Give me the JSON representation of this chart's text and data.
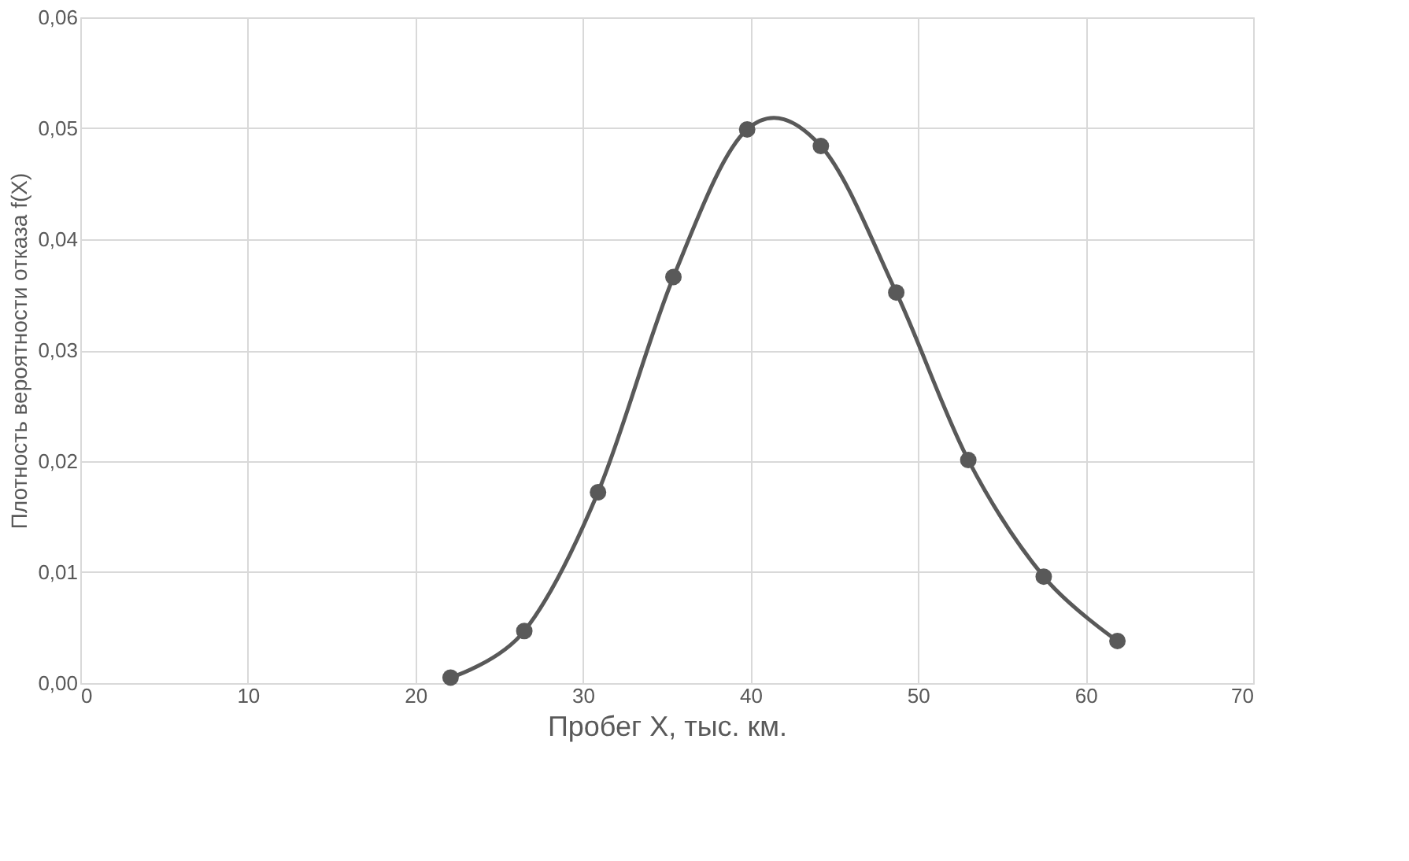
{
  "chart_data": {
    "type": "line",
    "xlabel": "Пробег X, тыс. км.",
    "ylabel": "Плотность вероятности отказа  f(X)",
    "x": [
      22.1,
      26.5,
      30.9,
      35.4,
      39.8,
      44.2,
      48.7,
      53.0,
      57.5,
      61.9
    ],
    "series": [
      {
        "color": "#595959",
        "values": [
          0.0005,
          0.0047,
          0.0172,
          0.0366,
          0.0499,
          0.0484,
          0.0352,
          0.0201,
          0.0096,
          0.0038
        ]
      }
    ],
    "xlim": [
      0,
      70
    ],
    "xticks": [
      0,
      10,
      20,
      30,
      40,
      50,
      60,
      70
    ],
    "ylim": [
      0,
      0.06
    ],
    "yticks": [
      {
        "value": 0,
        "label": "0,00"
      },
      {
        "value": 0.01,
        "label": "0,01"
      },
      {
        "value": 0.02,
        "label": "0,02"
      },
      {
        "value": 0.03,
        "label": "0,03"
      },
      {
        "value": 0.04,
        "label": "0,04"
      },
      {
        "value": 0.05,
        "label": "0,05"
      },
      {
        "value": 0.06,
        "label": "0,06"
      }
    ],
    "grid": true,
    "marker": "circle",
    "line_style": "solid"
  }
}
